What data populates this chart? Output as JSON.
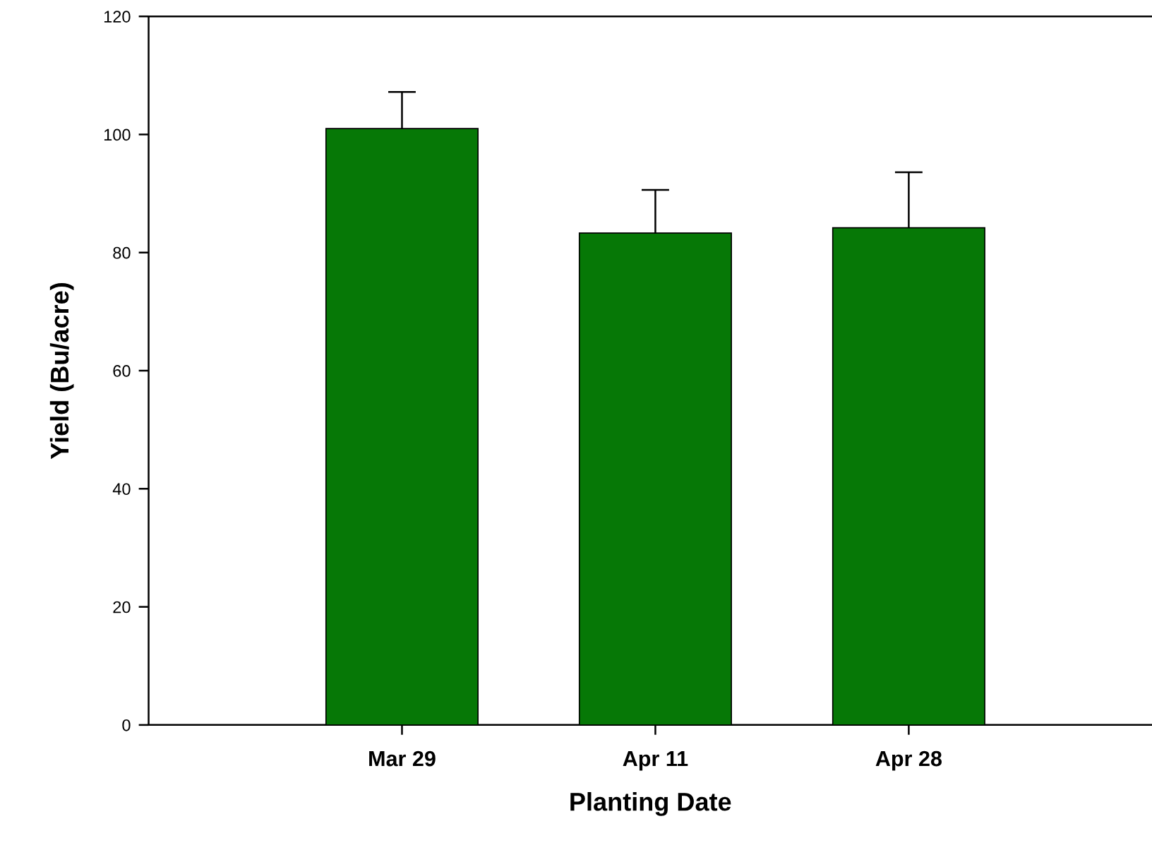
{
  "chart_data": {
    "type": "bar",
    "xlabel": "Planting Date",
    "ylabel": "Yield (Bu/acre)",
    "categories": [
      "Mar 29",
      "Apr 11",
      "Apr 28"
    ],
    "values": [
      101,
      83.3,
      84.2
    ],
    "errors": [
      6.2,
      7.3,
      9.4
    ],
    "color": "#067806",
    "ylim": [
      0,
      120
    ],
    "yticks": [
      0,
      20,
      40,
      60,
      80,
      100,
      120
    ],
    "grid": false,
    "legend": false
  }
}
